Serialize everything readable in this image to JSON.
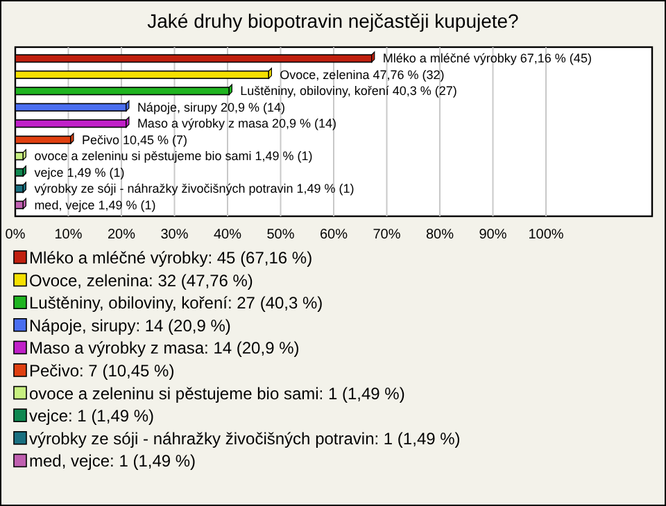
{
  "chart_data": {
    "type": "bar",
    "orientation": "horizontal",
    "title": "Jaké druhy biopotravin nejčastěji kupujete?",
    "categories": [
      null,
      null,
      null,
      null,
      null,
      null,
      null,
      null,
      null,
      null
    ],
    "xlim": [
      0,
      120
    ],
    "xticks": [
      {
        "value": 0,
        "label": "0%"
      },
      {
        "value": 10,
        "label": "10%"
      },
      {
        "value": 20,
        "label": "20%"
      },
      {
        "value": 30,
        "label": "30%"
      },
      {
        "value": 40,
        "label": "40%"
      },
      {
        "value": 50,
        "label": "50%"
      },
      {
        "value": 60,
        "label": "60%"
      },
      {
        "value": 70,
        "label": "70%"
      },
      {
        "value": 80,
        "label": "80%"
      },
      {
        "value": 90,
        "label": "90%"
      },
      {
        "value": 100,
        "label": "100%"
      }
    ],
    "grid": "x",
    "legend": "bottom",
    "series": [
      {
        "name": "Mléko a mléčné výrobky: 45 (67,16 %)",
        "color": "#c0200f",
        "values": [
          67.16,
          null,
          null,
          null,
          null,
          null,
          null,
          null,
          null,
          null
        ],
        "value_labels": [
          "Mléko a mléčné výrobky 67,16 % (45)",
          null,
          null,
          null,
          null,
          null,
          null,
          null,
          null,
          null
        ]
      },
      {
        "name": "Ovoce, zelenina: 32 (47,76 %)",
        "color": "#f5e000",
        "values": [
          null,
          47.76,
          null,
          null,
          null,
          null,
          null,
          null,
          null,
          null
        ],
        "value_labels": [
          null,
          "Ovoce, zelenina 47,76 % (32)",
          null,
          null,
          null,
          null,
          null,
          null,
          null,
          null
        ]
      },
      {
        "name": "Luštěniny, obiloviny, koření: 27 (40,3 %)",
        "color": "#20b420",
        "values": [
          null,
          null,
          40.3,
          null,
          null,
          null,
          null,
          null,
          null,
          null
        ],
        "value_labels": [
          null,
          null,
          "Luštěniny, obiloviny, koření 40,3 % (27)",
          null,
          null,
          null,
          null,
          null,
          null,
          null
        ]
      },
      {
        "name": "Nápoje, sirupy: 14 (20,9 %)",
        "color": "#4a6ef0",
        "values": [
          null,
          null,
          null,
          20.9,
          null,
          null,
          null,
          null,
          null,
          null
        ],
        "value_labels": [
          null,
          null,
          null,
          "Nápoje, sirupy 20,9 % (14)",
          null,
          null,
          null,
          null,
          null,
          null
        ]
      },
      {
        "name": "Maso a výrobky z masa: 14 (20,9 %)",
        "color": "#c020c8",
        "values": [
          null,
          null,
          null,
          null,
          20.9,
          null,
          null,
          null,
          null,
          null
        ],
        "value_labels": [
          null,
          null,
          null,
          null,
          "Maso a výrobky z masa 20,9 % (14)",
          null,
          null,
          null,
          null,
          null
        ]
      },
      {
        "name": "Pečivo: 7 (10,45 %)",
        "color": "#e04010",
        "values": [
          null,
          null,
          null,
          null,
          null,
          10.45,
          null,
          null,
          null,
          null
        ],
        "value_labels": [
          null,
          null,
          null,
          null,
          null,
          "Pečivo 10,45 % (7)",
          null,
          null,
          null,
          null
        ]
      },
      {
        "name": "ovoce a zeleninu si pěstujeme bio sami: 1 (1,49 %)",
        "color": "#c8f080",
        "values": [
          null,
          null,
          null,
          null,
          null,
          null,
          1.49,
          null,
          null,
          null
        ],
        "value_labels": [
          null,
          null,
          null,
          null,
          null,
          null,
          "ovoce a zeleninu si pěstujeme bio sami 1,49 % (1)",
          null,
          null,
          null
        ]
      },
      {
        "name": "vejce: 1 (1,49 %)",
        "color": "#108850",
        "values": [
          null,
          null,
          null,
          null,
          null,
          null,
          null,
          1.49,
          null,
          null
        ],
        "value_labels": [
          null,
          null,
          null,
          null,
          null,
          null,
          null,
          "vejce 1,49 % (1)",
          null,
          null
        ]
      },
      {
        "name": "výrobky ze sóji - náhražky živočišných potravin: 1 (1,49 %)",
        "color": "#1a7080",
        "values": [
          null,
          null,
          null,
          null,
          null,
          null,
          null,
          null,
          1.49,
          null
        ],
        "value_labels": [
          null,
          null,
          null,
          null,
          null,
          null,
          null,
          null,
          "výrobky ze sóji - náhražky živočišných potravin 1,49 % (1)",
          null
        ]
      },
      {
        "name": "med, vejce: 1 (1,49 %)",
        "color": "#c060b0",
        "values": [
          null,
          null,
          null,
          null,
          null,
          null,
          null,
          null,
          null,
          1.49
        ],
        "value_labels": [
          null,
          null,
          null,
          null,
          null,
          null,
          null,
          null,
          null,
          "med, vejce 1,49 % (1)"
        ]
      }
    ]
  }
}
